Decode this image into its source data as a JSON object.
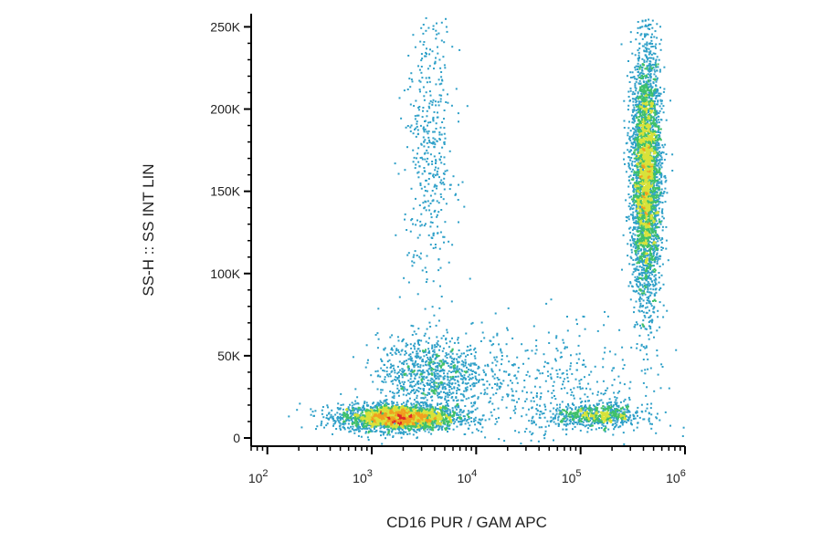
{
  "chart_data": {
    "type": "scatter",
    "subtype": "flow-cytometry density dot plot",
    "title": "",
    "xlabel": "CD16 PUR / GAM APC",
    "ylabel": "SS-H :: SS INT LIN",
    "x_scale": "log",
    "xlim": [
      70,
      1000000
    ],
    "ylim": [
      -5000,
      258000
    ],
    "x_ticks": [
      {
        "base": "10",
        "exp": "2",
        "value": 100
      },
      {
        "base": "10",
        "exp": "3",
        "value": 1000
      },
      {
        "base": "10",
        "exp": "4",
        "value": 10000
      },
      {
        "base": "10",
        "exp": "5",
        "value": 100000
      },
      {
        "base": "10",
        "exp": "6",
        "value": 1000000
      }
    ],
    "y_ticks": [
      {
        "label": "0",
        "value": 0
      },
      {
        "label": "50K",
        "value": 50000
      },
      {
        "label": "100K",
        "value": 100000
      },
      {
        "label": "150K",
        "value": 150000
      },
      {
        "label": "200K",
        "value": 200000
      },
      {
        "label": "250K",
        "value": 250000
      }
    ],
    "grid": false,
    "legend": "none",
    "color_scale": [
      "#2b4fa0",
      "#2fa0c8",
      "#3fc06a",
      "#d8e23a",
      "#f0a020",
      "#e02828"
    ],
    "populations": [
      {
        "log10_x_center": 3.25,
        "log10_x_sd": 0.28,
        "y_center": 13000,
        "y_sd": 4000,
        "relative_count": 0.3
      },
      {
        "log10_x_center": 5.15,
        "log10_x_sd": 0.22,
        "y_center": 14000,
        "y_sd": 3500,
        "relative_count": 0.08
      },
      {
        "log10_x_center": 5.62,
        "log10_x_sd": 0.07,
        "y_center": 160000,
        "y_sd": 38000,
        "relative_count": 0.42
      },
      {
        "log10_x_center": 3.55,
        "log10_x_sd": 0.25,
        "y_center": 40000,
        "y_sd": 11000,
        "relative_count": 0.09
      },
      {
        "log10_x_center": 3.55,
        "log10_x_sd": 0.12,
        "y_center": 175000,
        "y_sd": 45000,
        "relative_count": 0.05
      },
      {
        "log10_x_center": 4.6,
        "log10_x_sd": 0.6,
        "y_center": 30000,
        "y_sd": 20000,
        "relative_count": 0.06
      }
    ]
  }
}
